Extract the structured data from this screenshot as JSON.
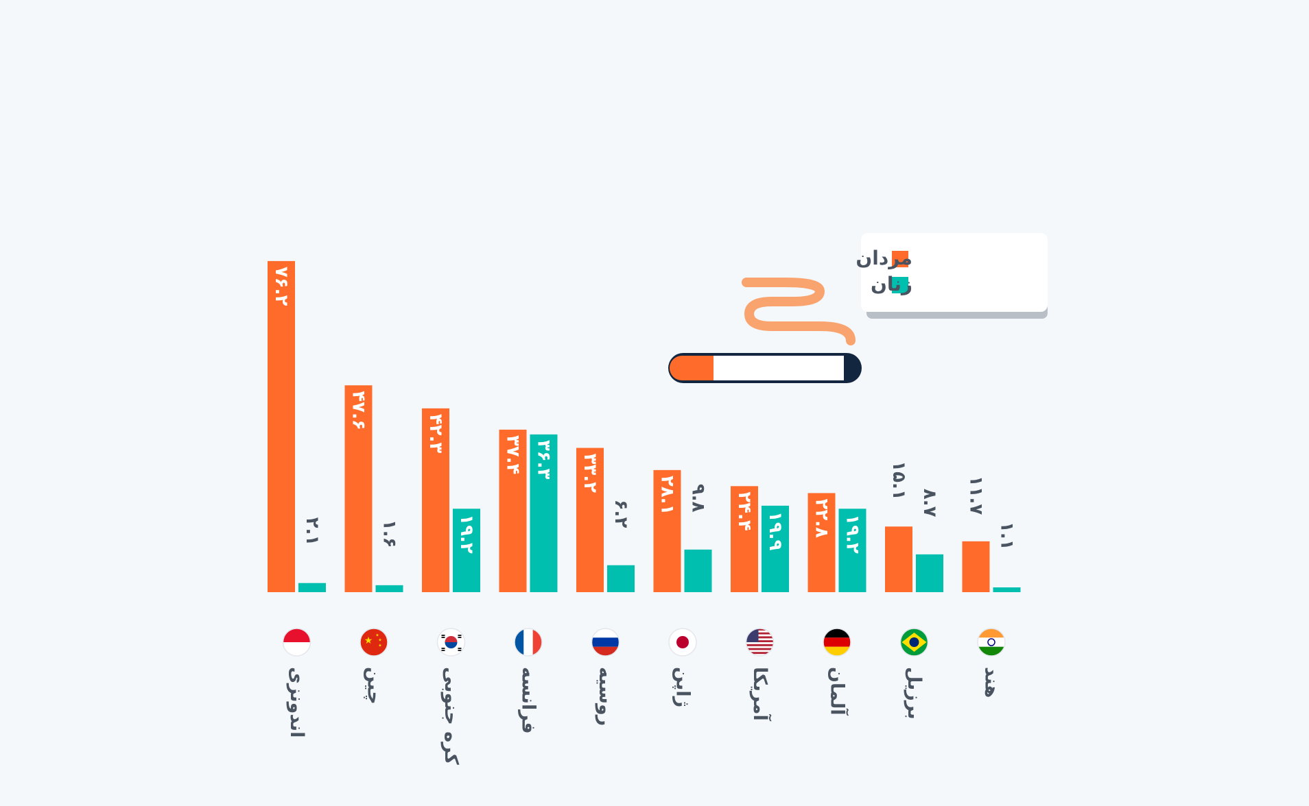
{
  "chart_data": {
    "type": "bar",
    "title": "",
    "xlabel": "",
    "ylabel": "",
    "ylim": [
      0,
      80
    ],
    "grid": false,
    "legend_placement": "top-right",
    "categories": [
      "اندونزی",
      "چین",
      "کره جنوبی",
      "فرانسه",
      "روسیه",
      "ژاپن",
      "آمریکا",
      "آلمان",
      "برزیل",
      "هند"
    ],
    "flags": [
      "indonesia-flag",
      "china-flag",
      "south-korea-flag",
      "france-flag",
      "russia-flag",
      "japan-flag",
      "usa-flag",
      "germany-flag",
      "brazil-flag",
      "india-flag"
    ],
    "series": [
      {
        "name": "مردان",
        "color": "#ff6b2b",
        "values": [
          76.2,
          47.6,
          42.3,
          37.4,
          33.2,
          28.1,
          24.4,
          22.8,
          15.1,
          11.7
        ],
        "labels": [
          "۷۶.۲",
          "۴۷.۶",
          "۴۲.۳",
          "۳۷.۴",
          "۳۳.۲",
          "۲۸.۱",
          "۲۴.۴",
          "۲۲.۸",
          "۱۵.۱",
          "۱۱.۷"
        ]
      },
      {
        "name": "زنان",
        "color": "#00bfae",
        "values": [
          2.1,
          1.6,
          19.2,
          36.3,
          6.2,
          9.8,
          19.9,
          19.2,
          8.7,
          1.1
        ],
        "labels": [
          "۲.۱",
          "۱.۶",
          "۱۹.۲",
          "۳۶.۳",
          "۶.۲",
          "۹.۸",
          "۱۹.۹",
          "۱۹.۲",
          "۸.۷",
          "۱.۱"
        ]
      }
    ]
  },
  "legend": {
    "items": [
      {
        "label": "مردان",
        "color": "#ff6b2b"
      },
      {
        "label": "زنان",
        "color": "#00bfae"
      }
    ]
  },
  "decoration": {
    "icon": "cigarette-icon",
    "smoke_icon": "smoke-icon",
    "filter_color": "#ff6b2b",
    "body_color": "#ffffff",
    "tip_color": "#13263f",
    "smoke_color": "#f9a36f"
  }
}
